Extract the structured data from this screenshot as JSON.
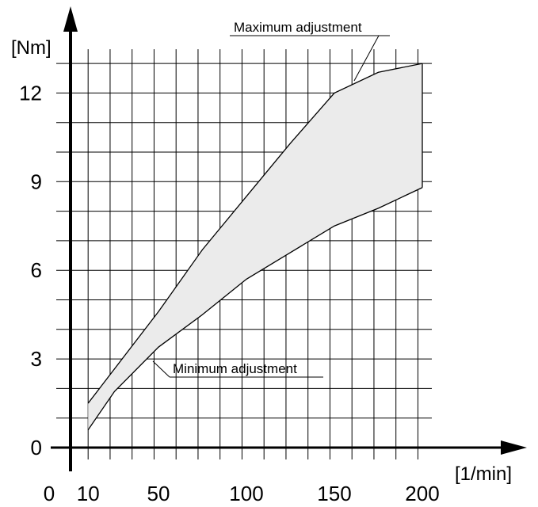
{
  "chart_data": {
    "type": "area",
    "ylabel": "[Nm]",
    "xlabel": "[1/min]",
    "x_ticks": [
      10,
      50,
      100,
      150,
      200
    ],
    "x_origin_label": "0",
    "y_ticks": [
      0,
      3,
      6,
      9,
      12
    ],
    "xlim": [
      0,
      200
    ],
    "ylim": [
      0,
      13
    ],
    "grid": true,
    "series": [
      {
        "name": "Maximum adjustment",
        "x": [
          10,
          50,
          75,
          100,
          125,
          150,
          175,
          200
        ],
        "y": [
          1.5,
          4.6,
          6.7,
          8.5,
          10.3,
          12.0,
          12.7,
          13.0
        ]
      },
      {
        "name": "Minimum adjustment",
        "x": [
          10,
          25,
          50,
          75,
          100,
          125,
          150,
          175,
          200
        ],
        "y": [
          0.6,
          1.9,
          3.4,
          4.5,
          5.7,
          6.6,
          7.5,
          8.1,
          8.8
        ]
      }
    ],
    "fill_color": "#ebebeb",
    "line_color": "#000000"
  }
}
